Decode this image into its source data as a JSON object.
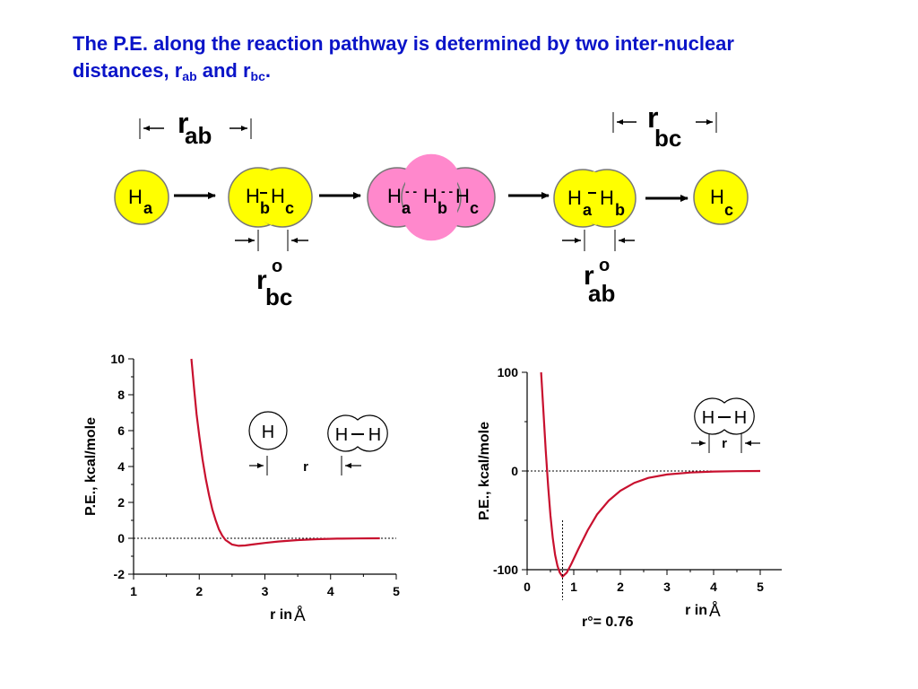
{
  "title": {
    "line1": "The P.E. along the reaction pathway is determined by two inter-nuclear",
    "line2_prefix": "distances, r",
    "sub1": "ab",
    "mid": " and r",
    "sub2": "bc",
    "end": "."
  },
  "reaction": {
    "r_ab": {
      "r": "r",
      "sub": "ab"
    },
    "r_bc": {
      "r": "r",
      "sub": "bc"
    },
    "r0_bc": {
      "r": "r",
      "deg": "o",
      "sub": "bc"
    },
    "r0_ab": {
      "r": "r",
      "deg": "o",
      "sub": "ab"
    },
    "H": "H",
    "subs": {
      "a": "a",
      "b": "b",
      "c": "c"
    },
    "colors": {
      "atom": "#ffff00",
      "transition": "#ff88cc"
    }
  },
  "charts": [
    {
      "type": "line",
      "ylabel": "P.E., kcal/mole",
      "xlabel": "r in ",
      "xunit": "Å",
      "xlim": [
        1,
        5
      ],
      "ylim": [
        -2,
        10
      ],
      "xticks": [
        "1",
        "2",
        "3",
        "4",
        "5"
      ],
      "yticks": [
        "-2",
        "0",
        "2",
        "4",
        "6",
        "8",
        "10"
      ],
      "series": [
        {
          "color": "#c8102e",
          "x": [
            1.88,
            1.92,
            1.96,
            2.0,
            2.05,
            2.1,
            2.15,
            2.2,
            2.25,
            2.3,
            2.35,
            2.4,
            2.5,
            2.6,
            2.7,
            2.8,
            3.0,
            3.2,
            3.5,
            3.8,
            4.1,
            4.4,
            4.75
          ],
          "y": [
            10,
            8.4,
            6.9,
            5.7,
            4.4,
            3.3,
            2.4,
            1.6,
            1.0,
            0.5,
            0.15,
            -0.1,
            -0.35,
            -0.42,
            -0.4,
            -0.35,
            -0.26,
            -0.18,
            -0.1,
            -0.05,
            -0.02,
            -0.01,
            0
          ]
        }
      ],
      "inset": {
        "atom": "H",
        "molecule": [
          "H",
          "H"
        ],
        "r_label": "r"
      }
    },
    {
      "type": "line",
      "ylabel": "P.E., kcal/mole",
      "xlabel": "r in ",
      "xunit": "Å",
      "xlim": [
        0,
        5
      ],
      "ylim": [
        -100,
        100
      ],
      "xticks": [
        "0",
        "1",
        "2",
        "3",
        "4",
        "5"
      ],
      "yticks": [
        "-100",
        "0",
        "100"
      ],
      "annotation": "r°= 0.76",
      "min_x": 0.76,
      "series": [
        {
          "color": "#c8102e",
          "x": [
            0.3,
            0.35,
            0.4,
            0.45,
            0.5,
            0.55,
            0.6,
            0.65,
            0.7,
            0.76,
            0.85,
            0.95,
            1.1,
            1.3,
            1.5,
            1.75,
            2.0,
            2.3,
            2.6,
            3.0,
            3.5,
            4.0,
            4.5,
            5.0
          ],
          "y": [
            100,
            60,
            20,
            -15,
            -45,
            -68,
            -85,
            -96,
            -103,
            -107,
            -103,
            -94,
            -79,
            -60,
            -44,
            -30,
            -20,
            -12,
            -7,
            -3.5,
            -1.5,
            -0.5,
            -0.2,
            0
          ]
        }
      ],
      "inset": {
        "molecule": [
          "H",
          "H"
        ],
        "r_label": "r"
      }
    }
  ]
}
